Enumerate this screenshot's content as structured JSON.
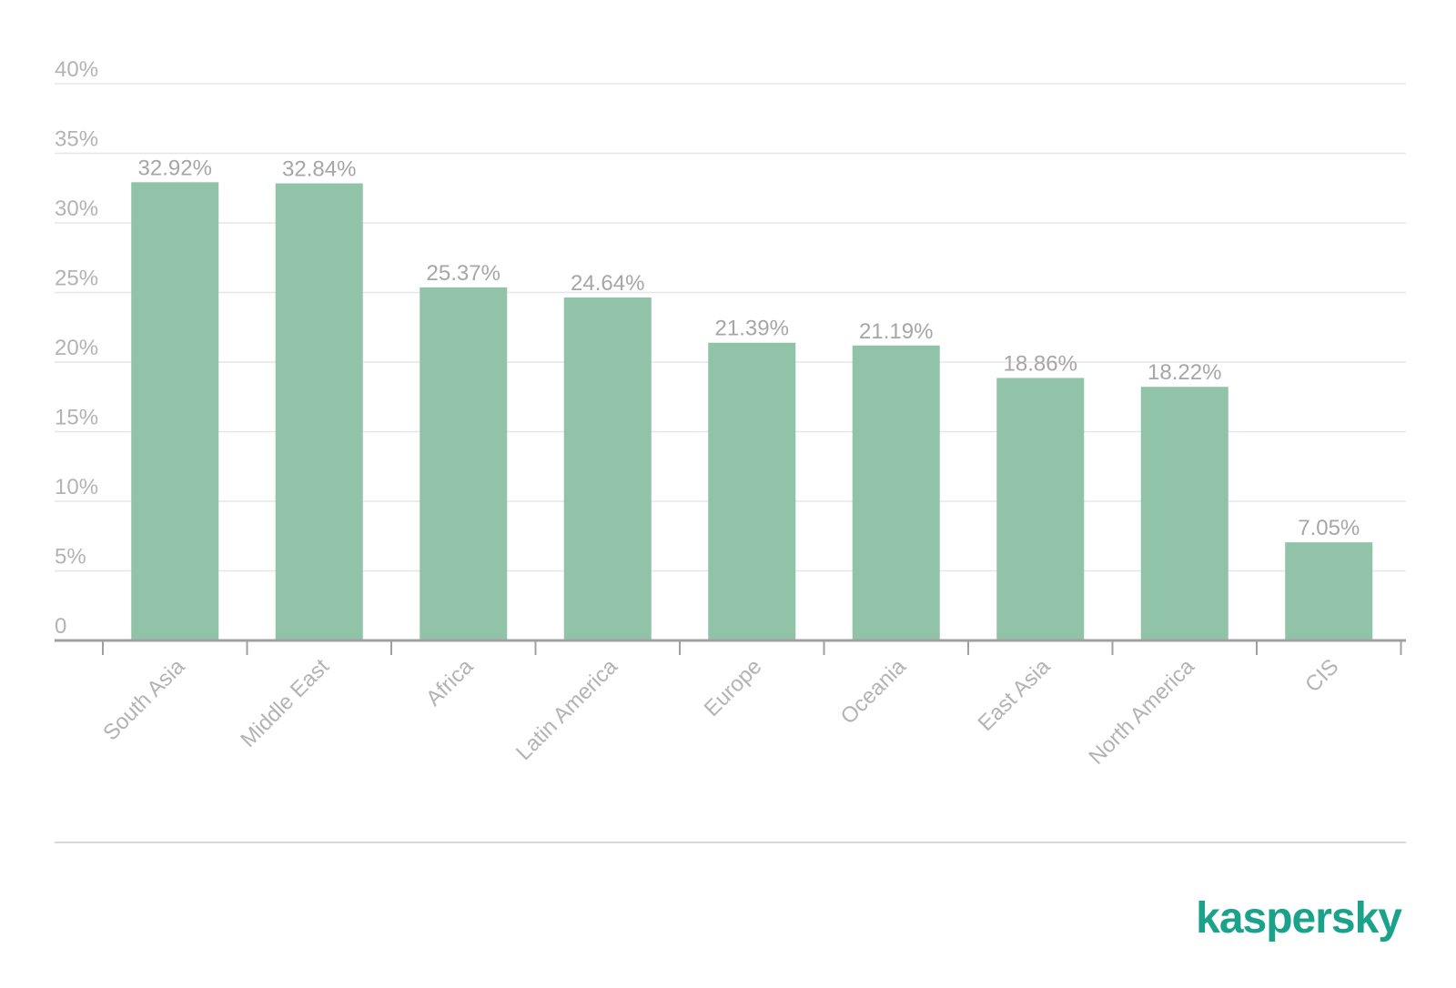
{
  "chart_data": {
    "type": "bar",
    "categories": [
      "South Asia",
      "Middle East",
      "Africa",
      "Latin America",
      "Europe",
      "Oceania",
      "East Asia",
      "North America",
      "CIS"
    ],
    "values": [
      32.92,
      32.84,
      25.37,
      24.64,
      21.39,
      21.19,
      18.86,
      18.22,
      7.05
    ],
    "data_labels": [
      "32.92%",
      "32.84%",
      "25.37%",
      "24.64%",
      "21.39%",
      "21.19%",
      "18.86%",
      "18.22%",
      "7.05%"
    ],
    "yticks": [
      0,
      5,
      10,
      15,
      20,
      25,
      30,
      35,
      40
    ],
    "ytick_labels": [
      "0",
      "5%",
      "10%",
      "15%",
      "20%",
      "25%",
      "30%",
      "35%",
      "40%"
    ],
    "ylim": [
      0,
      40
    ],
    "title": "",
    "xlabel": "",
    "ylabel": "",
    "grid": true,
    "legend": "none",
    "bar_color": "#90c3a8"
  },
  "brand": {
    "name": "kaspersky",
    "color": "#1aa38a"
  }
}
